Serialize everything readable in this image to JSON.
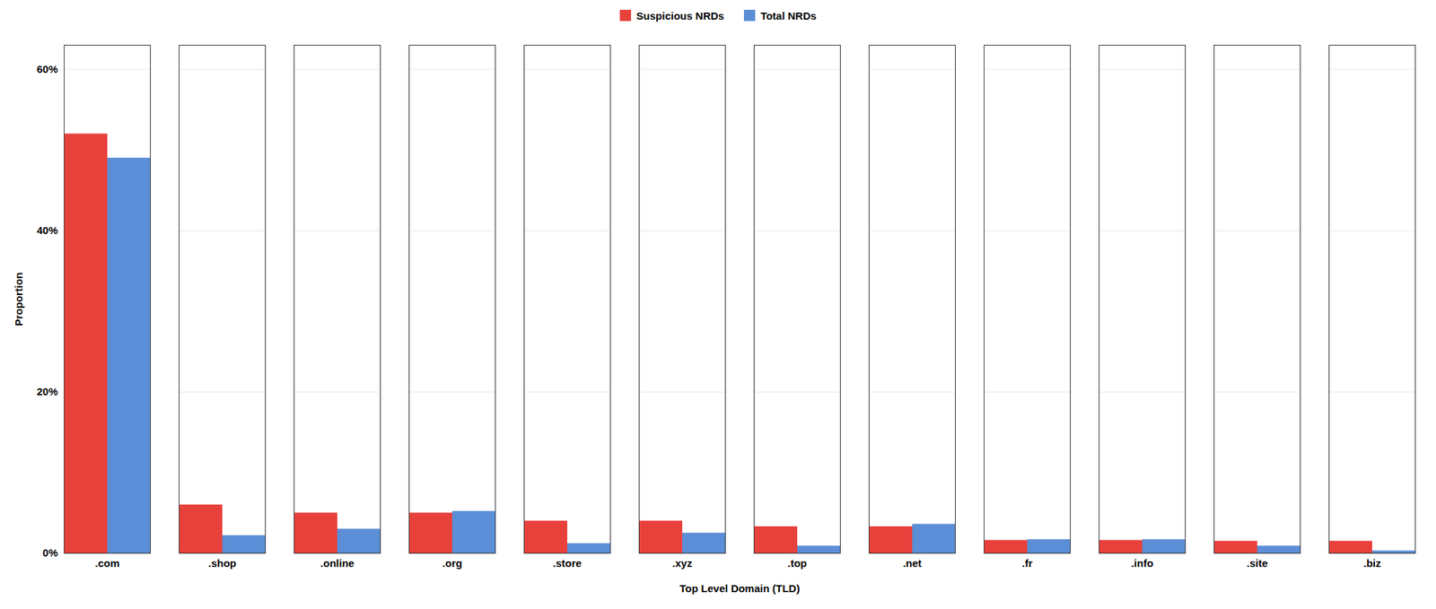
{
  "chart_data": {
    "type": "bar",
    "categories": [
      ".com",
      ".shop",
      ".online",
      ".org",
      ".store",
      ".xyz",
      ".top",
      ".net",
      ".fr",
      ".info",
      ".site",
      ".biz"
    ],
    "series": [
      {
        "name": "Suspicious NRDs",
        "color": "#e8413c",
        "values": [
          0.52,
          0.06,
          0.05,
          0.05,
          0.04,
          0.04,
          0.033,
          0.033,
          0.016,
          0.016,
          0.015,
          0.015
        ]
      },
      {
        "name": "Total NRDs",
        "color": "#5b8ed6",
        "values": [
          0.49,
          0.022,
          0.03,
          0.052,
          0.012,
          0.025,
          0.009,
          0.036,
          0.017,
          0.017,
          0.009,
          0.003
        ]
      }
    ],
    "xlabel": "Top Level Domain (TLD)",
    "ylabel": "Proportion",
    "ylim": [
      0,
      0.63
    ],
    "yticks": [
      {
        "value": 0,
        "label": "0%"
      },
      {
        "value": 0.2,
        "label": "20%"
      },
      {
        "value": 0.4,
        "label": "40%"
      },
      {
        "value": 0.6,
        "label": "60%"
      }
    ],
    "grid": true,
    "legend": "top"
  }
}
